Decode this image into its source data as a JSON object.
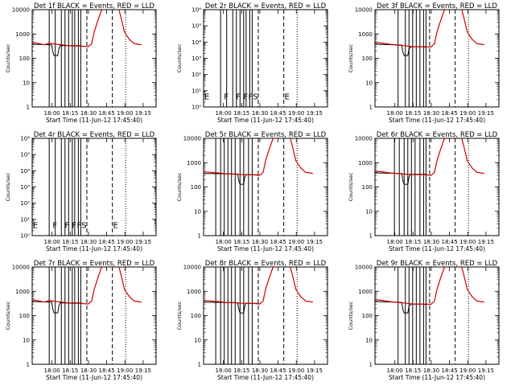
{
  "colors": {
    "events": "#000000",
    "lld": "#cc0000",
    "frame": "#000000"
  },
  "chart_data": [
    {
      "type": "line",
      "title": "Det 1f BLACK = Events, RED = LLD",
      "xlabel": "Start Time (11-Jun-12 17:45:40)",
      "ylabel": "Counts/sec",
      "y_scale": "log",
      "ylim": [
        1,
        10000
      ],
      "ytick_labels": [
        "1",
        "10",
        "100",
        "1000",
        "10000"
      ],
      "xtick_labels": [
        "18:00",
        "18:15",
        "18:30",
        "18:45",
        "19:00",
        "19:15"
      ],
      "xlim_minutes": [
        -2,
        100
      ],
      "series": [
        {
          "name": "Events",
          "x": [
            -2,
            14,
            15,
            16,
            19,
            20,
            21,
            38,
            40
          ],
          "y": [
            380,
            360,
            180,
            130,
            130,
            250,
            330,
            330,
            300
          ]
        },
        {
          "name": "LLD",
          "x": [
            -2,
            4,
            8,
            12,
            18,
            24,
            30,
            38,
            44,
            47,
            49,
            52,
            55,
            60,
            66,
            69,
            71,
            74,
            78,
            82,
            85,
            88
          ],
          "y": [
            450,
            400,
            360,
            420,
            380,
            350,
            320,
            320,
            300,
            400,
            1200,
            3500,
            9500,
            12000,
            12000,
            12000,
            5000,
            1200,
            600,
            400,
            380,
            360
          ]
        }
      ],
      "vlines_solid_minutes": [
        12,
        17,
        22,
        25,
        28,
        31,
        33,
        36,
        38
      ],
      "vlines_dashed_minutes": [
        43,
        64
      ],
      "vlines_dotted_minutes": [
        75
      ]
    },
    {
      "type": "line",
      "title": "Det 2r BLACK = Events, RED = LLD",
      "xlabel": "Start Time (11-Jun-12 17:45:40)",
      "ylabel": "Counts/sec",
      "y_scale": "log",
      "ylim": [
        1,
        1000000
      ],
      "ytick_labels": [
        "10⁰",
        "10¹",
        "10²",
        "10³",
        "10⁴",
        "10⁵",
        "10⁶"
      ],
      "xtick_labels": [
        "18:00",
        "18:15",
        "18:30",
        "18:45",
        "19:00",
        "19:15"
      ],
      "xlim_minutes": [
        -2,
        100
      ],
      "series": [],
      "vlines_solid_minutes": [
        12,
        17,
        22,
        25,
        28,
        31,
        33,
        36,
        38
      ],
      "vlines_dashed_minutes": [
        43,
        64
      ],
      "vlines_dotted_minutes": [
        75
      ],
      "markers": [
        {
          "x": -2,
          "y": 3,
          "label": "E"
        },
        {
          "x": 14,
          "y": 3,
          "label": "F"
        },
        {
          "x": 24,
          "y": 3,
          "label": "F"
        },
        {
          "x": 30,
          "y": 3,
          "label": "F"
        },
        {
          "x": 34,
          "y": 3,
          "label": "F"
        },
        {
          "x": 38,
          "y": 3,
          "label": "S"
        },
        {
          "x": 64,
          "y": 3,
          "label": "E"
        }
      ]
    },
    {
      "type": "line",
      "title": "Det 3f BLACK = Events, RED = LLD",
      "xlabel": "Start Time (11-Jun-12 17:45:40)",
      "ylabel": "Counts/sec",
      "y_scale": "log",
      "ylim": [
        1,
        10000
      ],
      "ytick_labels": [
        "1",
        "10",
        "100",
        "1000",
        "10000"
      ],
      "xtick_labels": [
        "18:00",
        "18:15",
        "18:30",
        "18:45",
        "19:00",
        "19:15"
      ],
      "xlim_minutes": [
        -2,
        100
      ],
      "series": [
        {
          "name": "Events",
          "x": [
            -2,
            20,
            21,
            22,
            25,
            26,
            28,
            38,
            40
          ],
          "y": [
            380,
            350,
            180,
            130,
            130,
            250,
            300,
            300,
            280
          ]
        },
        {
          "name": "LLD",
          "x": [
            -2,
            4,
            10,
            16,
            22,
            30,
            38,
            44,
            47,
            49,
            52,
            55,
            60,
            66,
            69,
            71,
            74,
            78,
            82,
            85,
            88
          ],
          "y": [
            450,
            420,
            380,
            350,
            330,
            300,
            300,
            290,
            400,
            1200,
            3500,
            9500,
            12000,
            12000,
            12000,
            5000,
            1200,
            600,
            400,
            380,
            360
          ]
        }
      ],
      "vlines_solid_minutes": [
        17,
        23,
        26,
        29,
        32,
        35,
        38,
        40
      ],
      "vlines_dashed_minutes": [
        43,
        64
      ],
      "vlines_dotted_minutes": [
        75
      ]
    },
    {
      "type": "line",
      "title": "Det 4r BLACK = Events, RED = LLD",
      "xlabel": "Start Time (11-Jun-12 17:45:40)",
      "ylabel": "Counts/sec",
      "y_scale": "log",
      "ylim": [
        1,
        1000000
      ],
      "ytick_labels": [
        "10⁰",
        "10¹",
        "10²",
        "10³",
        "10⁴",
        "10⁵",
        "10⁶"
      ],
      "xtick_labels": [
        "18:00",
        "18:15",
        "18:30",
        "18:45",
        "19:00",
        "19:15"
      ],
      "xlim_minutes": [
        -2,
        100
      ],
      "series": [],
      "vlines_solid_minutes": [
        12,
        17,
        22,
        25,
        28,
        31,
        33,
        36,
        38
      ],
      "vlines_dashed_minutes": [
        43,
        64
      ],
      "vlines_dotted_minutes": [
        75
      ],
      "markers": [
        {
          "x": -2,
          "y": 3,
          "label": "E"
        },
        {
          "x": 14,
          "y": 3,
          "label": "F"
        },
        {
          "x": 24,
          "y": 3,
          "label": "F"
        },
        {
          "x": 30,
          "y": 3,
          "label": "F"
        },
        {
          "x": 34,
          "y": 3,
          "label": "F"
        },
        {
          "x": 38,
          "y": 3,
          "label": "S"
        },
        {
          "x": 64,
          "y": 3,
          "label": "E"
        }
      ]
    },
    {
      "type": "line",
      "title": "Det 5r BLACK = Events, RED = LLD",
      "xlabel": "Start Time (11-Jun-12 17:45:40)",
      "ylabel": "Counts/sec",
      "y_scale": "log",
      "ylim": [
        1,
        10000
      ],
      "ytick_labels": [
        "1",
        "10",
        "100",
        "1000",
        "10000"
      ],
      "xtick_labels": [
        "18:00",
        "18:15",
        "18:30",
        "18:45",
        "19:00",
        "19:15"
      ],
      "xlim_minutes": [
        -2,
        100
      ],
      "series": [
        {
          "name": "Events",
          "x": [
            -2,
            26,
            27,
            28,
            31,
            32,
            33,
            42,
            44
          ],
          "y": [
            360,
            340,
            180,
            130,
            130,
            260,
            320,
            320,
            300
          ]
        },
        {
          "name": "LLD",
          "x": [
            -2,
            4,
            10,
            16,
            22,
            30,
            38,
            44,
            47,
            49,
            52,
            55,
            60,
            66,
            69,
            71,
            74,
            78,
            82,
            85,
            88
          ],
          "y": [
            420,
            400,
            380,
            350,
            340,
            320,
            320,
            300,
            400,
            1200,
            3500,
            9500,
            12000,
            12000,
            12000,
            5000,
            1200,
            600,
            400,
            380,
            360
          ]
        }
      ],
      "vlines_solid_minutes": [
        8,
        12,
        15,
        18,
        21,
        24,
        28,
        31,
        35,
        38
      ],
      "vlines_dashed_minutes": [
        43,
        64
      ],
      "vlines_dotted_minutes": [
        75
      ]
    },
    {
      "type": "line",
      "title": "Det 6r BLACK = Events, RED = LLD",
      "xlabel": "Start Time (11-Jun-12 17:45:40)",
      "ylabel": "Counts/sec",
      "y_scale": "log",
      "ylim": [
        1,
        10000
      ],
      "ytick_labels": [
        "1",
        "10",
        "100",
        "1000",
        "10000"
      ],
      "xtick_labels": [
        "18:00",
        "18:15",
        "18:30",
        "18:45",
        "19:00",
        "19:15"
      ],
      "xlim_minutes": [
        -2,
        100
      ],
      "series": [
        {
          "name": "Events",
          "x": [
            -2,
            20,
            21,
            22,
            25,
            26,
            27,
            40,
            42
          ],
          "y": [
            380,
            360,
            180,
            130,
            130,
            260,
            330,
            330,
            300
          ]
        },
        {
          "name": "LLD",
          "x": [
            -2,
            4,
            10,
            16,
            22,
            30,
            38,
            44,
            47,
            49,
            52,
            55,
            60,
            66,
            69,
            71,
            74,
            78,
            82,
            85,
            88
          ],
          "y": [
            440,
            420,
            380,
            360,
            340,
            320,
            320,
            300,
            400,
            1200,
            3500,
            9500,
            12000,
            12000,
            12000,
            5000,
            1200,
            600,
            400,
            380,
            360
          ]
        }
      ],
      "vlines_solid_minutes": [
        14,
        18,
        22,
        25,
        28,
        31,
        35,
        38,
        40
      ],
      "vlines_dashed_minutes": [
        43,
        64
      ],
      "vlines_dotted_minutes": [
        75
      ]
    },
    {
      "type": "line",
      "title": "Det 7r BLACK = Events, RED = LLD",
      "xlabel": "Start Time (11-Jun-12 17:45:40)",
      "ylabel": "Counts/sec",
      "y_scale": "log",
      "ylim": [
        1,
        10000
      ],
      "ytick_labels": [
        "1",
        "10",
        "100",
        "1000",
        "10000"
      ],
      "xtick_labels": [
        "18:00",
        "18:15",
        "18:30",
        "18:45",
        "19:00",
        "19:15"
      ],
      "xlim_minutes": [
        -2,
        100
      ],
      "series": [
        {
          "name": "Events",
          "x": [
            -2,
            14,
            15,
            16,
            19,
            20,
            21,
            38,
            40
          ],
          "y": [
            380,
            360,
            180,
            130,
            130,
            250,
            330,
            330,
            300
          ]
        },
        {
          "name": "LLD",
          "x": [
            -2,
            4,
            8,
            12,
            18,
            24,
            30,
            38,
            44,
            47,
            49,
            52,
            55,
            60,
            66,
            69,
            71,
            74,
            78,
            82,
            85,
            88
          ],
          "y": [
            450,
            400,
            360,
            420,
            380,
            350,
            320,
            320,
            300,
            400,
            1200,
            3500,
            9500,
            12000,
            12000,
            12000,
            5000,
            1200,
            600,
            400,
            380,
            360
          ]
        }
      ],
      "vlines_solid_minutes": [
        12,
        17,
        22,
        25,
        28,
        31,
        33,
        36,
        38
      ],
      "vlines_dashed_minutes": [
        43,
        64
      ],
      "vlines_dotted_minutes": [
        75
      ]
    },
    {
      "type": "line",
      "title": "Det 8r BLACK = Events, RED = LLD",
      "xlabel": "Start Time (11-Jun-12 17:45:40)",
      "ylabel": "Counts/sec",
      "y_scale": "log",
      "ylim": [
        1,
        10000
      ],
      "ytick_labels": [
        "1",
        "10",
        "100",
        "1000",
        "10000"
      ],
      "xtick_labels": [
        "18:00",
        "18:15",
        "18:30",
        "18:45",
        "19:00",
        "19:15"
      ],
      "xlim_minutes": [
        -2,
        100
      ],
      "series": [
        {
          "name": "Events",
          "x": [
            -2,
            26,
            27,
            28,
            31,
            32,
            33,
            42,
            44
          ],
          "y": [
            360,
            340,
            180,
            130,
            130,
            260,
            320,
            320,
            300
          ]
        },
        {
          "name": "LLD",
          "x": [
            -2,
            4,
            10,
            16,
            22,
            30,
            38,
            44,
            47,
            49,
            52,
            55,
            60,
            66,
            69,
            71,
            74,
            78,
            82,
            85,
            88
          ],
          "y": [
            420,
            400,
            380,
            350,
            340,
            320,
            320,
            300,
            400,
            1200,
            3500,
            9500,
            12000,
            12000,
            12000,
            5000,
            1200,
            600,
            400,
            380,
            360
          ]
        }
      ],
      "vlines_solid_minutes": [
        8,
        12,
        15,
        18,
        21,
        24,
        28,
        31,
        35,
        38
      ],
      "vlines_dashed_minutes": [
        43,
        64
      ],
      "vlines_dotted_minutes": [
        75
      ]
    },
    {
      "type": "line",
      "title": "Det 9r BLACK = Events, RED = LLD",
      "xlabel": "Start Time (11-Jun-12 17:45:40)",
      "ylabel": "Counts/sec",
      "y_scale": "log",
      "ylim": [
        1,
        10000
      ],
      "ytick_labels": [
        "1",
        "10",
        "100",
        "1000",
        "10000"
      ],
      "xtick_labels": [
        "18:00",
        "18:15",
        "18:30",
        "18:45",
        "19:00",
        "19:15"
      ],
      "xlim_minutes": [
        -2,
        100
      ],
      "series": [
        {
          "name": "Events",
          "x": [
            -2,
            20,
            21,
            22,
            25,
            26,
            28,
            38,
            40
          ],
          "y": [
            380,
            350,
            180,
            130,
            130,
            250,
            300,
            300,
            280
          ]
        },
        {
          "name": "LLD",
          "x": [
            -2,
            4,
            10,
            16,
            22,
            30,
            38,
            44,
            47,
            49,
            52,
            55,
            60,
            66,
            69,
            71,
            74,
            78,
            82,
            85,
            88
          ],
          "y": [
            450,
            420,
            380,
            350,
            330,
            300,
            300,
            290,
            400,
            1200,
            3500,
            9500,
            12000,
            12000,
            12000,
            5000,
            1200,
            600,
            400,
            380,
            360
          ]
        }
      ],
      "vlines_solid_minutes": [
        17,
        23,
        26,
        29,
        32,
        35,
        38,
        40
      ],
      "vlines_dashed_minutes": [
        43,
        64
      ],
      "vlines_dotted_minutes": [
        75
      ]
    }
  ]
}
